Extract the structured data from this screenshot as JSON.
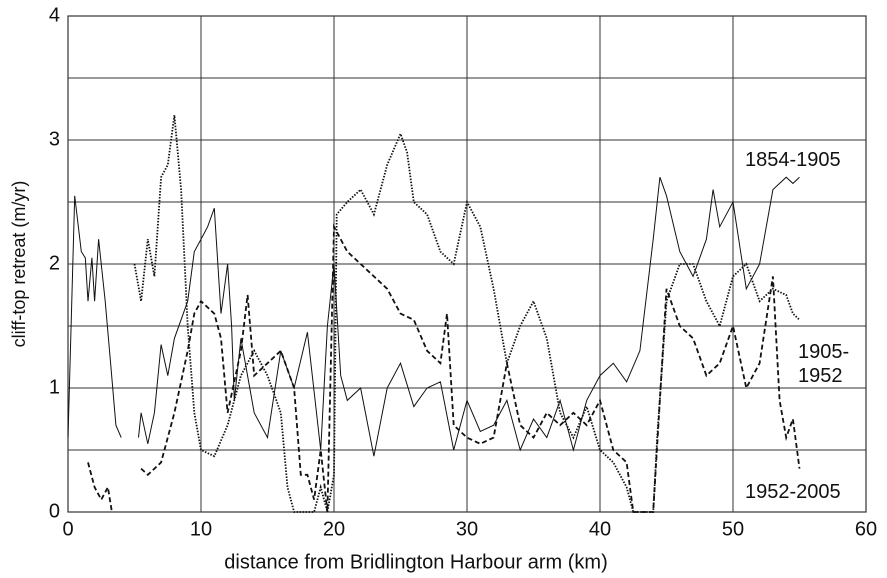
{
  "chart_data": {
    "type": "line",
    "xlabel": "distance from Bridlington Harbour arm (km)",
    "ylabel": "cliff-top retreat (m/yr)",
    "xlim": [
      0,
      60
    ],
    "xticks": [
      0,
      10,
      20,
      30,
      40,
      50,
      60
    ],
    "ylim": [
      0,
      4
    ],
    "yticks": [
      0,
      1,
      2,
      3,
      4
    ],
    "yminor_grid": [
      0.5,
      1.5,
      2.5,
      3.5
    ],
    "grid": true,
    "series": [
      {
        "name": "1854-1905",
        "color": "#111111",
        "style": "solid",
        "x": [
          0,
          0.5,
          1,
          1.3,
          1.5,
          1.8,
          2,
          2.3,
          2.8,
          3.2,
          3.6,
          4,
          4.5,
          5.3,
          5.5,
          6,
          6.5,
          7,
          7.5,
          8,
          9,
          9.5,
          10,
          10.5,
          11,
          11.5,
          12,
          12.3,
          12.5,
          13,
          14,
          15,
          16,
          17,
          18,
          19,
          19.5,
          20,
          20.5,
          21,
          22,
          23,
          24,
          25,
          26,
          27,
          28,
          29,
          30,
          31,
          32,
          33,
          34,
          35,
          36,
          37,
          38,
          39,
          40,
          41,
          42,
          43,
          44,
          44.5,
          45,
          46,
          47,
          48,
          48.5,
          49,
          50,
          51,
          52,
          53,
          54,
          54.5,
          55
        ],
        "values": [
          0.6,
          2.55,
          2.1,
          2.05,
          1.7,
          2.05,
          1.7,
          2.2,
          1.7,
          1.2,
          0.7,
          0.6,
          null,
          0.6,
          0.8,
          0.55,
          0.8,
          1.35,
          1.1,
          1.4,
          1.7,
          2.1,
          2.2,
          2.3,
          2.45,
          1.6,
          2.0,
          1.5,
          0.9,
          1.4,
          0.8,
          0.6,
          1.3,
          1.0,
          1.45,
          0.5,
          1.5,
          2.0,
          1.1,
          0.9,
          1.0,
          0.45,
          1.0,
          1.2,
          0.85,
          1.0,
          1.05,
          0.5,
          0.9,
          0.65,
          0.7,
          0.9,
          0.5,
          0.75,
          0.6,
          0.9,
          0.5,
          0.9,
          1.1,
          1.2,
          1.05,
          1.3,
          2.2,
          2.7,
          2.55,
          2.1,
          1.9,
          2.2,
          2.6,
          2.3,
          2.5,
          1.8,
          2.0,
          2.6,
          2.7,
          2.65,
          2.7
        ]
      },
      {
        "name": "1905-1952",
        "color": "#111111",
        "style": "dotted",
        "x": [
          5,
          5.5,
          6,
          6.5,
          7,
          7.5,
          8,
          8.5,
          9,
          9.5,
          10,
          11,
          12,
          13,
          14,
          15,
          16,
          16.5,
          17,
          18.5,
          19,
          19.5,
          20,
          20.2,
          21,
          22,
          23,
          24,
          25,
          25.5,
          26,
          27,
          28,
          29,
          30,
          31,
          32,
          33,
          34,
          35,
          36,
          37,
          38,
          39,
          40,
          41,
          42,
          42.5,
          44,
          44.3,
          45,
          46,
          47,
          48,
          49,
          50,
          51,
          52,
          53,
          54,
          54.5,
          55
        ],
        "values": [
          2.0,
          1.7,
          2.2,
          1.9,
          2.7,
          2.8,
          3.2,
          2.6,
          1.5,
          0.8,
          0.5,
          0.45,
          0.7,
          1.1,
          1.3,
          1.1,
          0.8,
          0.2,
          0,
          0,
          0.2,
          0,
          0.3,
          2.4,
          2.5,
          2.6,
          2.4,
          2.8,
          3.05,
          2.9,
          2.5,
          2.4,
          2.1,
          2.0,
          2.5,
          2.3,
          1.8,
          1.2,
          1.5,
          1.7,
          1.4,
          0.8,
          0.6,
          0.85,
          0.5,
          0.4,
          0.2,
          0,
          0,
          0.6,
          1.7,
          2.0,
          2.0,
          1.7,
          1.5,
          1.9,
          2.0,
          1.7,
          1.8,
          1.75,
          1.6,
          1.55
        ]
      },
      {
        "name": "1952-2005",
        "color": "#111111",
        "style": "dashed",
        "x": [
          1.5,
          2,
          2.5,
          3,
          3.3,
          4.5,
          5.5,
          6,
          7,
          8,
          9,
          9.5,
          10,
          11,
          11.5,
          12,
          13,
          13.5,
          14,
          15,
          16,
          17,
          17.5,
          18,
          18.5,
          19,
          19.5,
          20,
          21,
          22,
          23,
          24,
          25,
          26,
          27,
          28,
          28.5,
          29,
          30,
          31,
          32,
          33,
          34,
          35,
          36,
          37,
          38,
          39,
          40,
          41,
          42,
          42.5,
          44,
          45,
          46,
          47,
          48,
          49,
          50,
          51,
          52,
          53,
          53.5,
          54,
          54.5,
          55
        ],
        "values": [
          0.4,
          0.2,
          0.1,
          0.2,
          0,
          null,
          0.35,
          0.3,
          0.4,
          0.8,
          1.3,
          1.6,
          1.7,
          1.6,
          1.4,
          0.8,
          1.3,
          1.75,
          1.1,
          1.2,
          1.3,
          1.0,
          0.3,
          0.3,
          0.1,
          0.5,
          0,
          2.3,
          2.1,
          2.0,
          1.9,
          1.8,
          1.6,
          1.55,
          1.3,
          1.2,
          1.6,
          0.7,
          0.6,
          0.55,
          0.6,
          1.2,
          0.7,
          0.6,
          0.8,
          0.7,
          0.8,
          0.7,
          0.9,
          0.5,
          0.4,
          0,
          0,
          1.8,
          1.5,
          1.4,
          1.1,
          1.2,
          1.5,
          1.0,
          1.2,
          1.9,
          0.9,
          0.6,
          0.75,
          0.35
        ]
      }
    ]
  }
}
